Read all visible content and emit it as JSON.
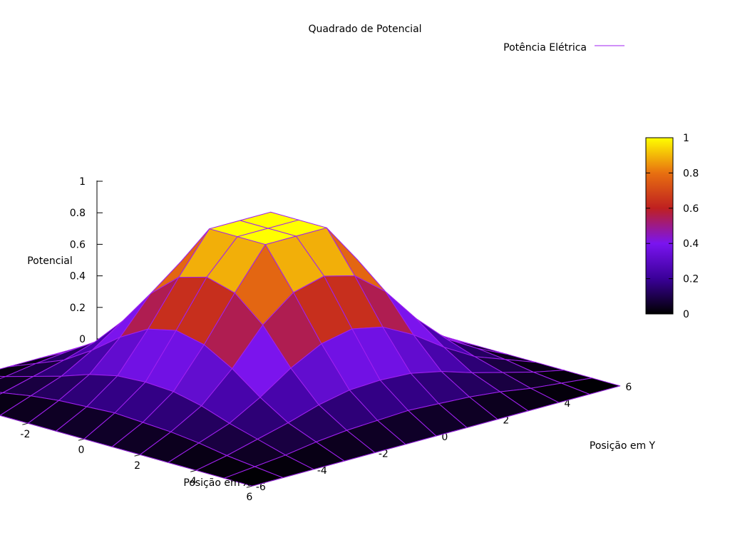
{
  "chart_data": {
    "type": "surface",
    "title": "Quadrado de Potencial",
    "xlabel": "Posição em X",
    "ylabel": "Posição em Y",
    "zlabel": "Potencial",
    "x": [
      -6,
      -5,
      -4,
      -3,
      -2,
      -1,
      0,
      1,
      2,
      3,
      4,
      5,
      6
    ],
    "y": [
      -6,
      -5,
      -4,
      -3,
      -2,
      -1,
      0,
      1,
      2,
      3,
      4,
      5,
      6
    ],
    "series": [
      {
        "name": "Potência Elétrica",
        "line_color": "#a020f0",
        "z_rows_by_y": [
          [
            0.0,
            0.0,
            0.0,
            0.0,
            0.0,
            0.0,
            0.0,
            0.0,
            0.0,
            0.0,
            0.0,
            0.0,
            0.0
          ],
          [
            0.0,
            0.02,
            0.04,
            0.07,
            0.09,
            0.1,
            0.11,
            0.1,
            0.09,
            0.07,
            0.04,
            0.02,
            0.0
          ],
          [
            0.0,
            0.04,
            0.09,
            0.14,
            0.2,
            0.24,
            0.25,
            0.24,
            0.2,
            0.14,
            0.09,
            0.04,
            0.0
          ],
          [
            0.0,
            0.07,
            0.14,
            0.25,
            0.38,
            0.48,
            0.52,
            0.48,
            0.38,
            0.25,
            0.14,
            0.07,
            0.0
          ],
          [
            0.0,
            0.09,
            0.2,
            0.38,
            0.6,
            0.75,
            0.8,
            0.75,
            0.6,
            0.38,
            0.2,
            0.09,
            0.0
          ],
          [
            0.0,
            0.1,
            0.24,
            0.48,
            0.75,
            1.0,
            1.0,
            1.0,
            0.75,
            0.48,
            0.24,
            0.1,
            0.0
          ],
          [
            0.0,
            0.11,
            0.25,
            0.52,
            0.8,
            1.0,
            1.0,
            1.0,
            0.8,
            0.52,
            0.25,
            0.11,
            0.0
          ],
          [
            0.0,
            0.1,
            0.24,
            0.48,
            0.75,
            1.0,
            1.0,
            1.0,
            0.75,
            0.48,
            0.24,
            0.1,
            0.0
          ],
          [
            0.0,
            0.09,
            0.2,
            0.38,
            0.6,
            0.75,
            0.8,
            0.75,
            0.6,
            0.38,
            0.2,
            0.09,
            0.0
          ],
          [
            0.0,
            0.07,
            0.14,
            0.25,
            0.38,
            0.48,
            0.52,
            0.48,
            0.38,
            0.25,
            0.14,
            0.07,
            0.0
          ],
          [
            0.0,
            0.04,
            0.09,
            0.14,
            0.2,
            0.24,
            0.25,
            0.24,
            0.2,
            0.14,
            0.09,
            0.04,
            0.0
          ],
          [
            0.0,
            0.02,
            0.04,
            0.07,
            0.09,
            0.1,
            0.11,
            0.1,
            0.09,
            0.07,
            0.04,
            0.02,
            0.0
          ],
          [
            0.0,
            0.0,
            0.0,
            0.0,
            0.0,
            0.0,
            0.0,
            0.0,
            0.0,
            0.0,
            0.0,
            0.0,
            0.0
          ]
        ]
      }
    ],
    "xlim": [
      -6,
      6
    ],
    "ylim": [
      -6,
      6
    ],
    "zlim": [
      0,
      1
    ],
    "x_ticks": [
      "-6",
      "-4",
      "-2",
      "0",
      "2",
      "4",
      "6"
    ],
    "y_ticks": [
      "-6",
      "-4",
      "-2",
      "0",
      "2",
      "4",
      "6"
    ],
    "z_ticks": [
      "0",
      "0.2",
      "0.4",
      "0.6",
      "0.8",
      "1"
    ],
    "colorbar": {
      "ticks": [
        "0",
        "0.2",
        "0.4",
        "0.6",
        "0.8",
        "1"
      ],
      "range": [
        0,
        1
      ],
      "palette": "black-blue-purple-red-orange-yellow"
    },
    "grid": true,
    "legend_position": "top-right",
    "mesh_color": "#a020f0",
    "palette_stops": [
      "#000000",
      "#3a0098",
      "#7a14f0",
      "#bf2020",
      "#e87010",
      "#ffff00"
    ]
  }
}
